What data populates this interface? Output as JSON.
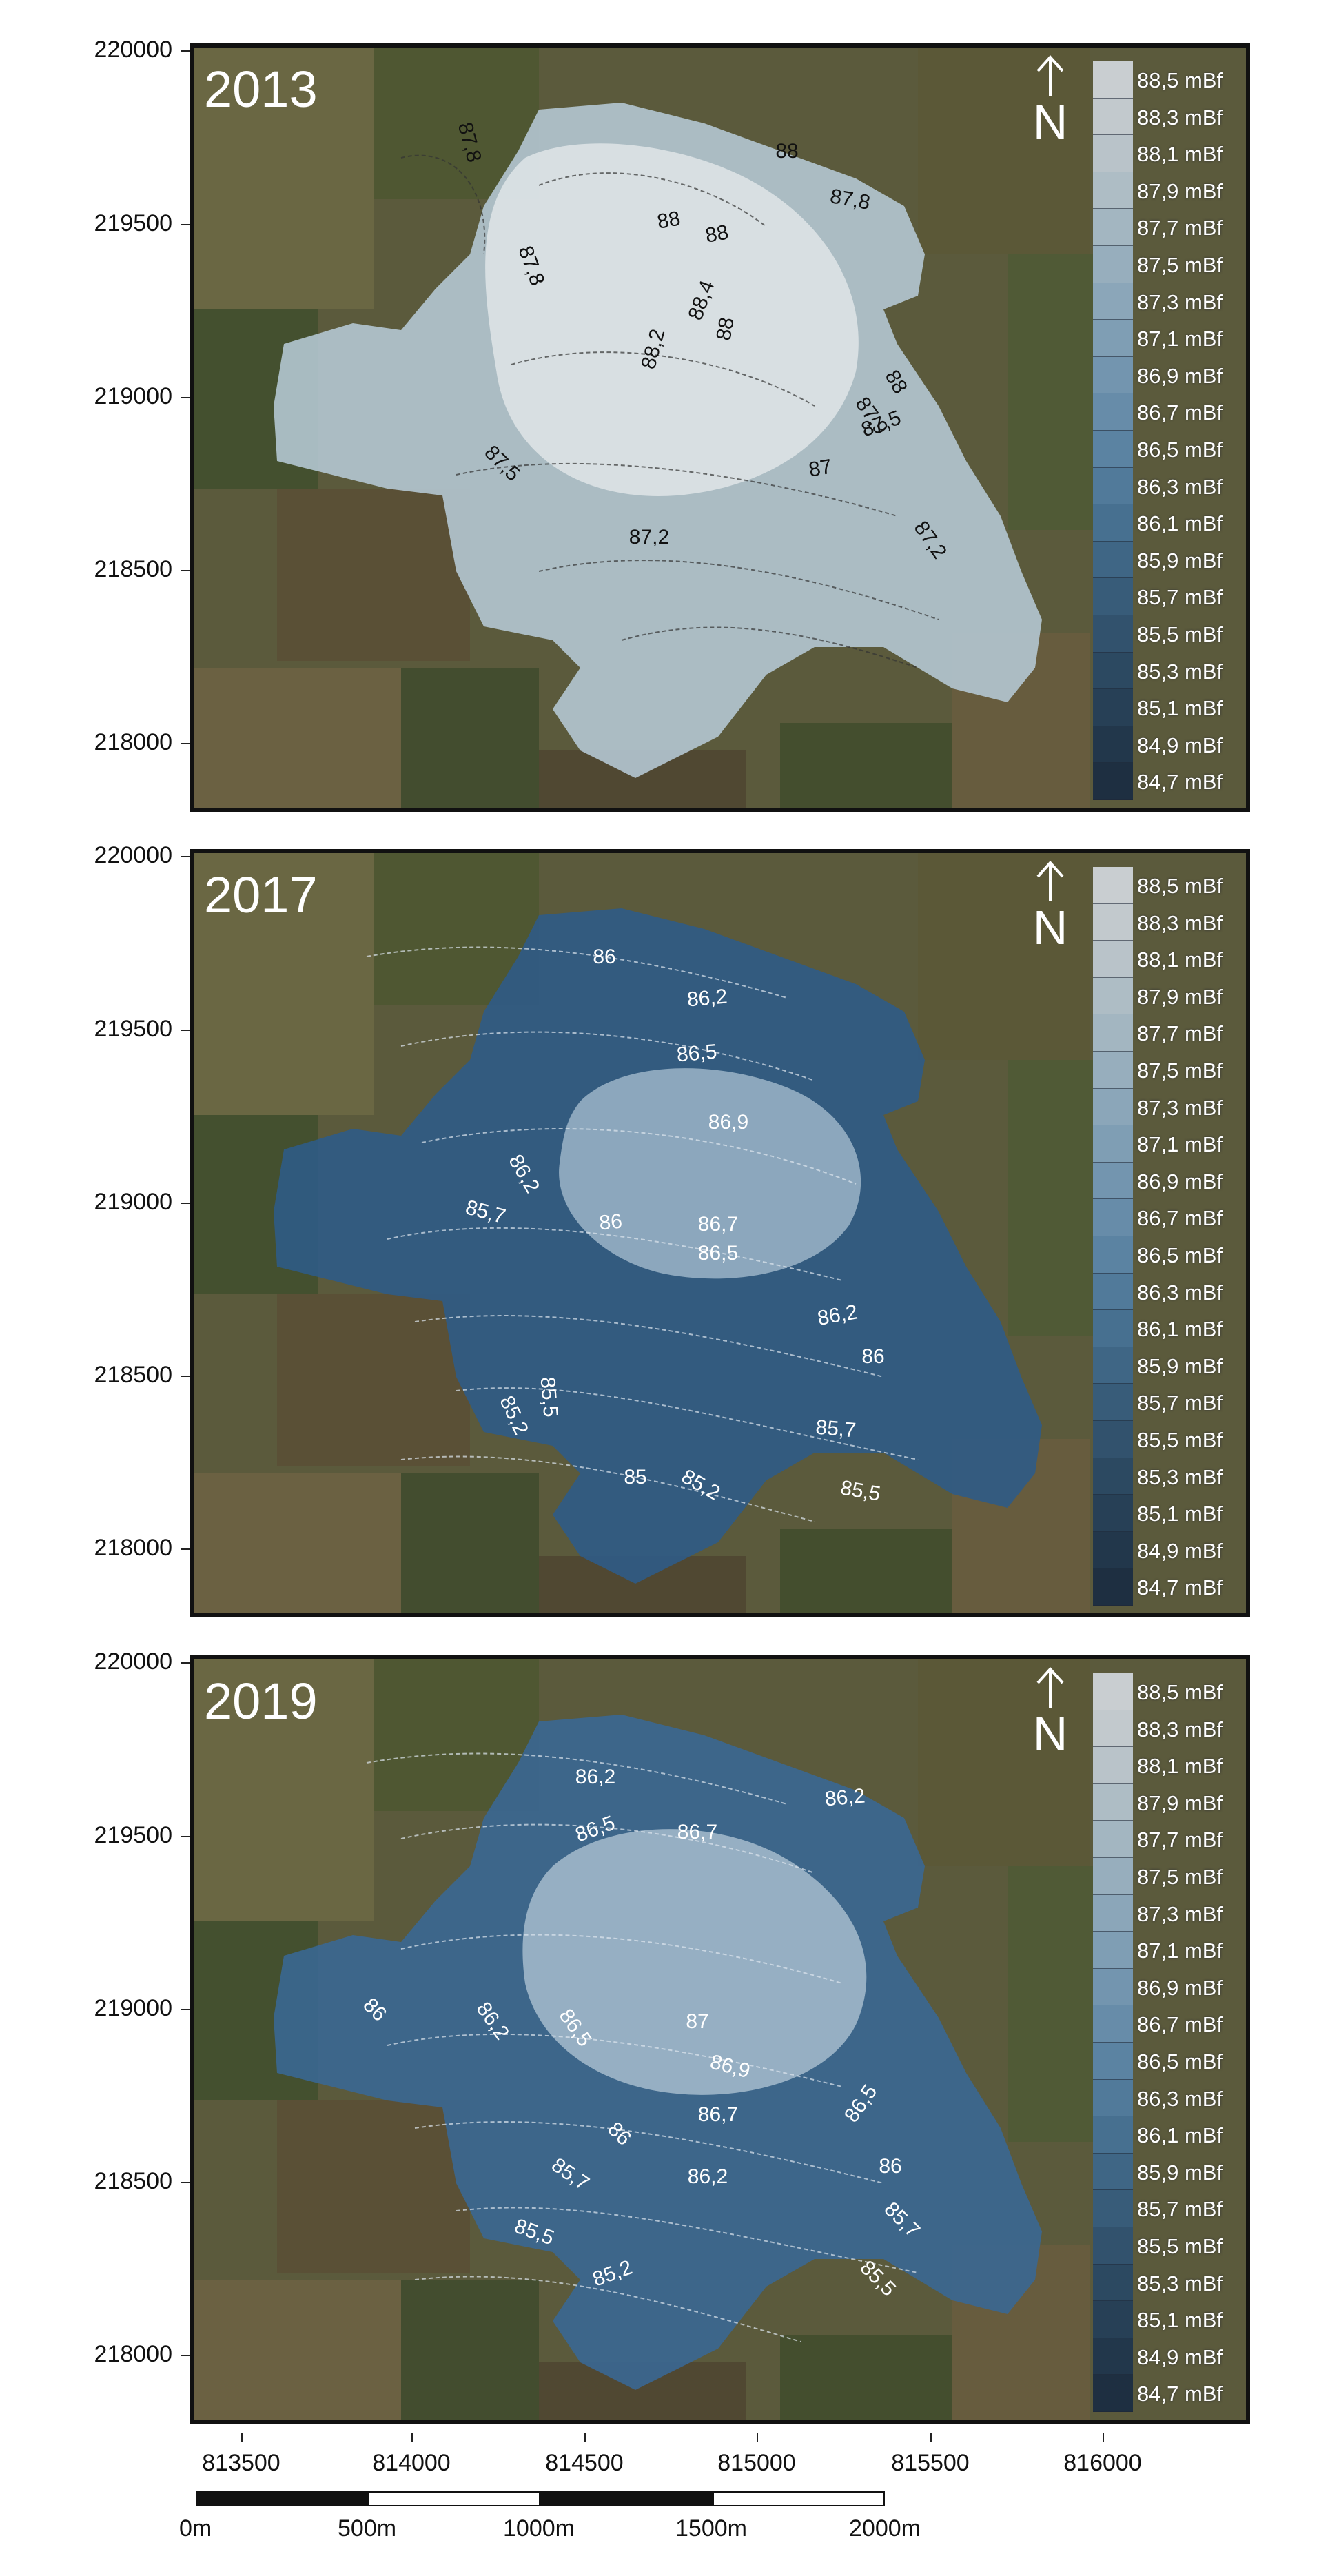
{
  "y_axis_labels": [
    "220000",
    "219500",
    "219000",
    "218500",
    "218000"
  ],
  "x_axis_labels": [
    "813500",
    "814000",
    "814500",
    "815000",
    "815500",
    "816000"
  ],
  "legend_items": [
    "88,5 mBf",
    "88,3 mBf",
    "88,1 mBf",
    "87,9 mBf",
    "87,7 mBf",
    "87,5 mBf",
    "87,3 mBf",
    "87,1 mBf",
    "86,9 mBf",
    "86,7 mBf",
    "86,5 mBf",
    "86,3 mBf",
    "86,1 mBf",
    "85,9 mBf",
    "85,7 mBf",
    "85,5 mBf",
    "85,3 mBf",
    "85,1 mBf",
    "84,9 mBf",
    "84,7 mBf"
  ],
  "legend_colors": [
    "#c9ced1",
    "#c2c9cd",
    "#b9c3c9",
    "#aebdc5",
    "#a3b6c1",
    "#97aebd",
    "#8ba6b9",
    "#7f9eb4",
    "#7395af",
    "#678ca9",
    "#5b83a2",
    "#517a9a",
    "#477090",
    "#3f6685",
    "#385c79",
    "#32526d",
    "#2c4961",
    "#274056",
    "#22374b",
    "#1e2f41"
  ],
  "north_symbol": "N",
  "scale_bar": {
    "labels": [
      "0m",
      "500m",
      "1000m",
      "1500m",
      "2000m"
    ]
  },
  "panels": [
    {
      "year": "2013",
      "fill_color": "#b4c6d2",
      "inner_color": "#dfe5e7",
      "contour_labels": [
        "88",
        "87,8",
        "87,8",
        "88",
        "88",
        "87,8",
        "88",
        "88,2",
        "88,4",
        "87,5",
        "88",
        "87,9",
        "87,5",
        "87",
        "87,2",
        "87,2"
      ]
    },
    {
      "year": "2017",
      "fill_color": "#2f5b86",
      "inner_color": "#9cb5c8",
      "contour_labels": [
        "86",
        "86,2",
        "86,5",
        "86,9",
        "86,2",
        "85,7",
        "86",
        "86,7",
        "86,5",
        "86,2",
        "86",
        "85,5",
        "85,2",
        "85,7",
        "85",
        "85,2",
        "85,5"
      ]
    },
    {
      "year": "2019",
      "fill_color": "#3a6792",
      "inner_color": "#a6bccc",
      "contour_labels": [
        "86,2",
        "86,2",
        "86,5",
        "86,7",
        "86",
        "86,2",
        "86,5",
        "87",
        "86,9",
        "86,7",
        "86,5",
        "86",
        "85,7",
        "86,2",
        "86",
        "85,5",
        "85,7",
        "85,2",
        "85,5"
      ]
    }
  ]
}
